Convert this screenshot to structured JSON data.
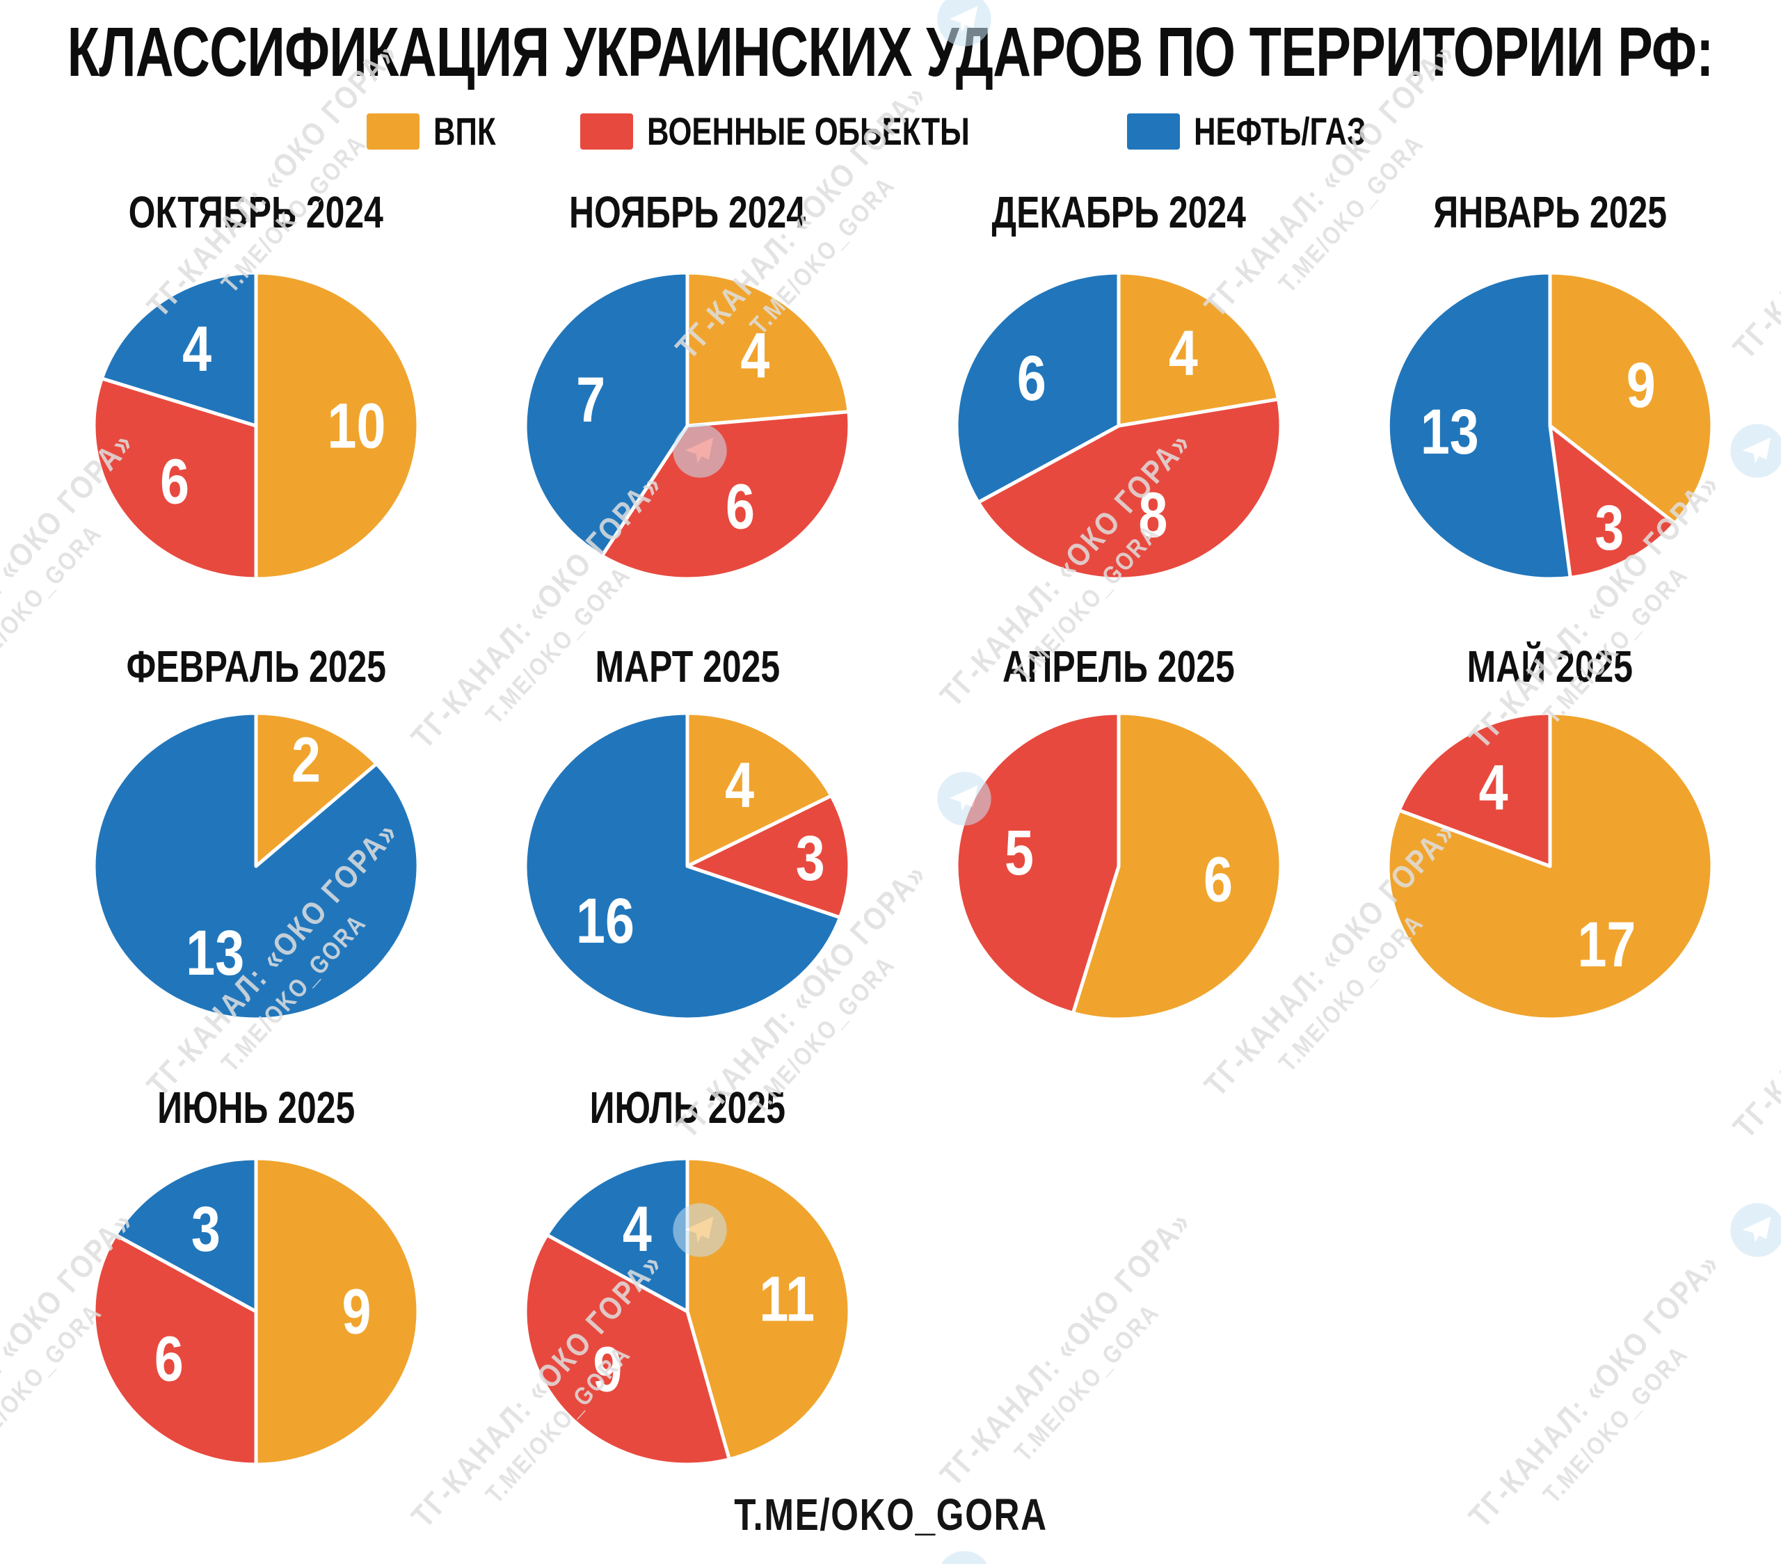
{
  "title": "КЛАССИФИКАЦИЯ УКРАИНСКИХ УДАРОВ ПО ТЕРРИТОРИИ РФ:",
  "legend": {
    "items": [
      {
        "key": "vpk",
        "label": "ВПК",
        "color": "#F0A42D"
      },
      {
        "key": "military",
        "label": "ВОЕННЫЕ ОБЬЕКТЫ",
        "color": "#E8493E"
      },
      {
        "key": "oil",
        "label": "НЕФТЬ/ГАЗ",
        "color": "#2176BB"
      }
    ]
  },
  "footer": "T.ME/OKO_GORA",
  "watermark": {
    "line1": "ТГ-КАНАЛ: «ОКО ГОРА»",
    "line2": "T.ME/OKO_GORA"
  },
  "chart_data": {
    "type": "pie",
    "title": "КЛАССИФИКАЦИЯ УКРАИНСКИХ УДАРОВ ПО ТЕРРИТОРИИ РФ:",
    "legend": [
      "ВПК",
      "ВОЕННЫЕ ОБЬЕКТЫ",
      "НЕФТЬ/ГАЗ"
    ],
    "legend_position": "top",
    "slice_order": [
      "vpk",
      "military",
      "oil"
    ],
    "start_angle_deg": 0,
    "direction": "clockwise",
    "charts": [
      {
        "month": "ОКТЯБРЬ 2024",
        "values": {
          "vpk": 10,
          "military": 6,
          "oil": 4
        }
      },
      {
        "month": "НОЯБРЬ 2024",
        "values": {
          "vpk": 4,
          "military": 6,
          "oil": 7
        }
      },
      {
        "month": "ДЕКАБРЬ 2024",
        "values": {
          "vpk": 4,
          "military": 8,
          "oil": 6
        }
      },
      {
        "month": "ЯНВАРЬ 2025",
        "values": {
          "vpk": 9,
          "military": 3,
          "oil": 13
        }
      },
      {
        "month": "ФЕВРАЛЬ 2025",
        "values": {
          "vpk": 2,
          "military": 0,
          "oil": 13
        }
      },
      {
        "month": "МАРТ 2025",
        "values": {
          "vpk": 4,
          "military": 3,
          "oil": 16
        }
      },
      {
        "month": "АПРЕЛЬ 2025",
        "values": {
          "vpk": 6,
          "military": 5,
          "oil": 0
        }
      },
      {
        "month": "МАЙ 2025",
        "values": {
          "vpk": 17,
          "military": 4,
          "oil": 0
        }
      },
      {
        "month": "ИЮНЬ 2025",
        "values": {
          "vpk": 9,
          "military": 6,
          "oil": 3
        }
      },
      {
        "month": "ИЮЛЬ 2025",
        "values": {
          "vpk": 11,
          "military": 9,
          "oil": 4
        }
      }
    ]
  }
}
